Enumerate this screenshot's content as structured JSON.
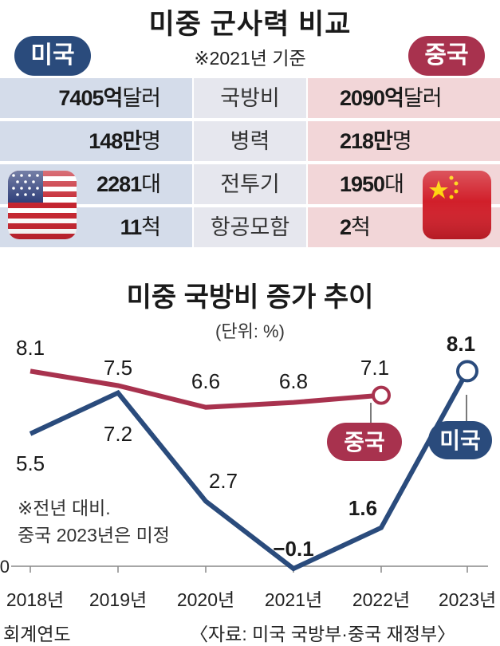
{
  "header": {
    "title": "미중 군사력 비교",
    "basis": "※2021년 기준",
    "us_label": "미국",
    "cn_label": "중국"
  },
  "comparison": [
    {
      "metric": "국방비",
      "us_value": "7405억",
      "us_unit": "달러",
      "cn_value": "2090억",
      "cn_unit": "달러"
    },
    {
      "metric": "병력",
      "us_value": "148만",
      "us_unit": "명",
      "cn_value": "218만",
      "cn_unit": "명"
    },
    {
      "metric": "전투기",
      "us_value": "2281",
      "us_unit": "대",
      "cn_value": "1950",
      "cn_unit": "대"
    },
    {
      "metric": "항공모함",
      "us_value": "11",
      "us_unit": "척",
      "cn_value": "2",
      "cn_unit": "척"
    }
  ],
  "colors": {
    "us": "#2a4b7c",
    "cn": "#a8324e",
    "us_row_bg": "#d4dcea",
    "cn_row_bg": "#f2d6d8"
  },
  "flags": [
    "us-flag-icon",
    "china-flag-icon"
  ],
  "chart_data": {
    "type": "line",
    "title": "미중 국방비 증가 추이",
    "unit": "(단위: %)",
    "categories": [
      "2018년",
      "2019년",
      "2020년",
      "2021년",
      "2022년",
      "2023년"
    ],
    "xlabel": "회계연도",
    "ylim": [
      0,
      8.5
    ],
    "y_tick_labels": [
      "0"
    ],
    "series": [
      {
        "name": "중국",
        "values": [
          8.1,
          7.5,
          6.6,
          6.8,
          7.1,
          null
        ],
        "value_labels": [
          "8.1",
          "7.5",
          "6.6",
          "6.8",
          "7.1"
        ],
        "color": "#a8324e"
      },
      {
        "name": "미국",
        "values": [
          5.5,
          7.2,
          2.7,
          -0.1,
          1.6,
          8.1
        ],
        "value_labels": [
          "5.5",
          "7.2",
          "2.7",
          "−0.1",
          "1.6",
          "8.1"
        ],
        "color": "#2a4b7c"
      }
    ],
    "notes": [
      "※전년 대비.",
      "중국 2023년은 미정"
    ],
    "source": "〈자료: 미국 국방부·중국 재정부〉"
  }
}
